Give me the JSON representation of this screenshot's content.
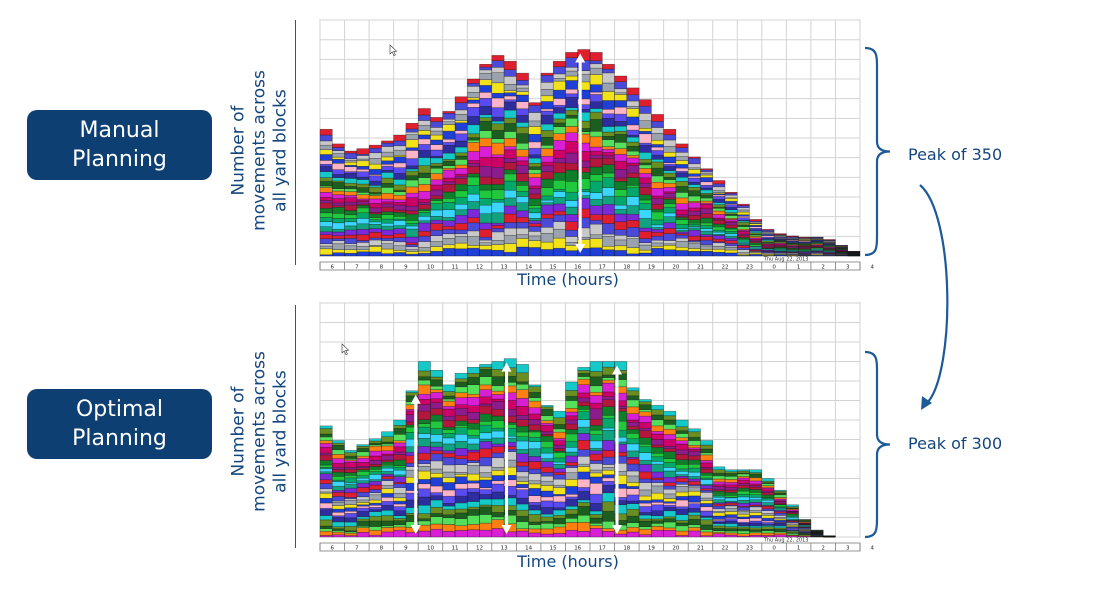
{
  "labels": {
    "top": "Manual\nPlanning",
    "bottom": "Optimal\nPlanning"
  },
  "y_axis_label": [
    "Number of",
    "movements across",
    "all yard blocks"
  ],
  "x_axis_label": "Time (hours)",
  "peaks": {
    "top": "Peak of 350",
    "bottom": "Peak of 300"
  },
  "colors": {
    "label_bg": "#0d3f73",
    "text": "#13467d",
    "bracket": "#1d5a9a"
  },
  "chart_data": [
    {
      "type": "area",
      "subtitle": "Manual Planning",
      "date_label": "Thu Aug 22, 2013",
      "x_ticks": [
        "6",
        "7",
        "8",
        "9",
        "10",
        "11",
        "12",
        "13",
        "14",
        "15",
        "16",
        "17",
        "18",
        "19",
        "20",
        "21",
        "22",
        "23",
        "0",
        "1",
        "2",
        "3",
        "4"
      ],
      "x": [
        6,
        6.5,
        7,
        7.5,
        8,
        8.5,
        9,
        9.5,
        10,
        10.5,
        11,
        11.5,
        12,
        12.5,
        13,
        13.5,
        14,
        14.5,
        15,
        15.5,
        16,
        16.5,
        17,
        17.5,
        18,
        18.5,
        19,
        19.5,
        20,
        20.5,
        21,
        21.5,
        22,
        22.5,
        23,
        23.5,
        24,
        24.5,
        25,
        25.5,
        26,
        26.5,
        27,
        27.5
      ],
      "total": [
        215,
        190,
        178,
        182,
        188,
        195,
        205,
        225,
        250,
        235,
        245,
        270,
        300,
        325,
        340,
        330,
        310,
        260,
        310,
        330,
        345,
        350,
        345,
        325,
        305,
        285,
        265,
        240,
        215,
        190,
        168,
        148,
        128,
        108,
        88,
        62,
        45,
        38,
        34,
        32,
        32,
        28,
        18,
        8
      ],
      "annotation": "Peak of 350"
    },
    {
      "type": "area",
      "subtitle": "Optimal Planning",
      "date_label": "Thu Aug 22, 2013",
      "x_ticks": [
        "6",
        "7",
        "8",
        "9",
        "10",
        "11",
        "12",
        "13",
        "14",
        "15",
        "16",
        "17",
        "18",
        "19",
        "20",
        "21",
        "22",
        "23",
        "0",
        "1",
        "2",
        "3",
        "4"
      ],
      "x": [
        6,
        6.5,
        7,
        7.5,
        8,
        8.5,
        9,
        9.5,
        10,
        10.5,
        11,
        11.5,
        12,
        12.5,
        13,
        13.5,
        14,
        14.5,
        15,
        15.5,
        16,
        16.5,
        17,
        17.5,
        18,
        18.5,
        19,
        19.5,
        20,
        20.5,
        21,
        21.5,
        22,
        22.5,
        23,
        23.5,
        24,
        24.5,
        25,
        25.5,
        26,
        26.5,
        27,
        27.5
      ],
      "total": [
        190,
        165,
        148,
        158,
        168,
        180,
        200,
        250,
        300,
        285,
        260,
        280,
        290,
        295,
        300,
        305,
        295,
        260,
        225,
        215,
        265,
        290,
        300,
        300,
        300,
        255,
        235,
        225,
        215,
        200,
        185,
        165,
        120,
        115,
        115,
        115,
        100,
        80,
        55,
        30,
        12,
        2,
        0,
        0
      ],
      "annotation": "Peak of 300"
    }
  ]
}
